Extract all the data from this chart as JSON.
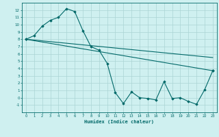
{
  "bg_color": "#cff0f0",
  "grid_color": "#aad4d4",
  "line_color": "#006868",
  "marker_color": "#006868",
  "xlabel": "Humidex (Indice chaleur)",
  "ylim": [
    -2,
    13
  ],
  "xlim": [
    -0.5,
    23.5
  ],
  "yticks": [
    -1,
    0,
    1,
    2,
    3,
    4,
    5,
    6,
    7,
    8,
    9,
    10,
    11,
    12
  ],
  "xticks": [
    0,
    1,
    2,
    3,
    4,
    5,
    6,
    7,
    8,
    9,
    10,
    11,
    12,
    13,
    14,
    15,
    16,
    17,
    18,
    19,
    20,
    21,
    22,
    23
  ],
  "series1_x": [
    0,
    1,
    2,
    3,
    4,
    5,
    6,
    7,
    8,
    9,
    10,
    11,
    12,
    13,
    14,
    15,
    16,
    17,
    18,
    19,
    20,
    21,
    22,
    23
  ],
  "series1_y": [
    8.0,
    8.5,
    9.8,
    10.6,
    11.0,
    12.2,
    11.8,
    9.2,
    7.0,
    6.5,
    4.7,
    0.7,
    -0.8,
    0.8,
    0.0,
    -0.1,
    -0.3,
    2.2,
    -0.1,
    0.0,
    -0.5,
    -0.9,
    1.1,
    3.7
  ],
  "series2_x": [
    0,
    23
  ],
  "series2_y": [
    8.0,
    3.7
  ],
  "series3_x": [
    0,
    23
  ],
  "series3_y": [
    8.0,
    5.5
  ]
}
